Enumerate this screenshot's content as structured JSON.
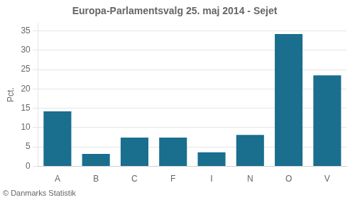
{
  "chart_data": {
    "type": "bar",
    "title": "Europa-Parlamentsvalg 25. maj 2014 - Sejet",
    "ylabel": "Pct.",
    "footer": "© Danmarks Statistik",
    "categories": [
      "A",
      "B",
      "C",
      "F",
      "I",
      "N",
      "O",
      "V"
    ],
    "values": [
      14.2,
      3.2,
      7.4,
      7.4,
      3.6,
      8.1,
      34.2,
      23.5
    ],
    "color": "#1a6e8e",
    "ylim": [
      0,
      37
    ],
    "yticks": [
      0,
      5,
      10,
      15,
      20,
      25,
      30,
      35
    ],
    "grid": true
  }
}
